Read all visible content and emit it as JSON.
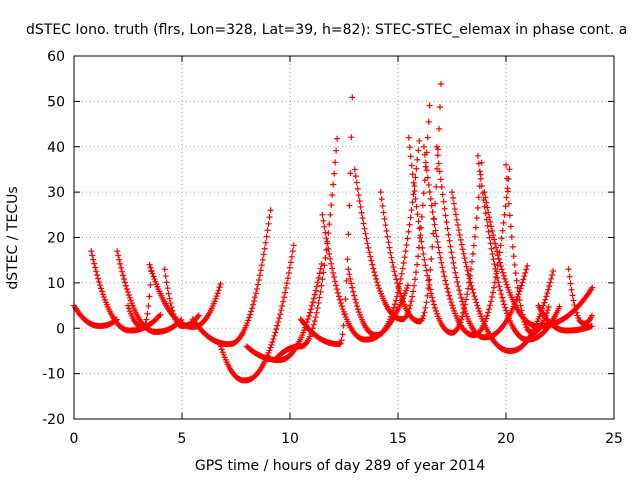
{
  "chart_data": {
    "type": "scatter",
    "title": "dSTEC Iono. truth (flrs, Lon=328, Lat=39, h=82): STEC-STEC_elemax in phase cont. a",
    "xlabel": "GPS time / hours of day 289 of year 2014",
    "ylabel": "dSTEC  / TECUs",
    "xlim": [
      0,
      25
    ],
    "ylim": [
      -20,
      60
    ],
    "xticks": [
      0,
      5,
      10,
      15,
      20,
      25
    ],
    "yticks": [
      -20,
      -10,
      0,
      10,
      20,
      30,
      40,
      50,
      60
    ],
    "grid": true,
    "marker": "+",
    "color": "#ff0000",
    "arcs": [
      {
        "start": 0.0,
        "min_t": 1.2,
        "min_v": 0.5,
        "end": 2.0,
        "peak_start": 5,
        "peak_end": 2
      },
      {
        "start": 0.8,
        "min_t": 2.6,
        "min_v": -0.5,
        "end": 4.0,
        "peak_start": 17,
        "peak_end": 3
      },
      {
        "start": 2.0,
        "min_t": 3.8,
        "min_v": -0.8,
        "end": 5.0,
        "peak_start": 17,
        "peak_end": 2
      },
      {
        "start": 2.5,
        "min_t": 3.2,
        "min_v": 0.2,
        "end": 3.6,
        "peak_start": 5,
        "peak_end": 14
      },
      {
        "start": 3.5,
        "min_t": 5.5,
        "min_v": 0.3,
        "end": 6.8,
        "peak_start": 14,
        "peak_end": 10
      },
      {
        "start": 4.2,
        "min_t": 5.0,
        "min_v": 0.5,
        "end": 5.8,
        "peak_start": 13,
        "peak_end": 3
      },
      {
        "start": 5.5,
        "min_t": 7.2,
        "min_v": -3.5,
        "end": 9.1,
        "peak_start": 2,
        "peak_end": 26
      },
      {
        "start": 6.8,
        "min_t": 7.9,
        "min_v": -11.5,
        "end": 10.2,
        "peak_start": -4,
        "peak_end": 19
      },
      {
        "start": 8.0,
        "min_t": 9.5,
        "min_v": -7.0,
        "end": 11.5,
        "peak_start": -4,
        "peak_end": 15
      },
      {
        "start": 9.3,
        "min_t": 10.5,
        "min_v": -4.0,
        "end": 12.2,
        "peak_start": -7,
        "peak_end": 43
      },
      {
        "start": 10.5,
        "min_t": 12.3,
        "min_v": -3.5,
        "end": 12.9,
        "peak_start": 2,
        "peak_end": 54
      },
      {
        "start": 11.5,
        "min_t": 13.5,
        "min_v": -2.5,
        "end": 15.5,
        "peak_start": 25,
        "peak_end": 10
      },
      {
        "start": 12.7,
        "min_t": 14.0,
        "min_v": -1.5,
        "end": 16.0,
        "peak_start": 13,
        "peak_end": 42
      },
      {
        "start": 13.0,
        "min_t": 15.2,
        "min_v": 2.0,
        "end": 16.5,
        "peak_start": 35,
        "peak_end": 52
      },
      {
        "start": 14.2,
        "min_t": 16.0,
        "min_v": 1.5,
        "end": 17.0,
        "peak_start": 30,
        "peak_end": 55
      },
      {
        "start": 15.5,
        "min_t": 17.5,
        "min_v": -1.0,
        "end": 18.9,
        "peak_start": 42,
        "peak_end": 38
      },
      {
        "start": 16.2,
        "min_t": 18.5,
        "min_v": -1.5,
        "end": 20.2,
        "peak_start": 40,
        "peak_end": 37
      },
      {
        "start": 16.8,
        "min_t": 19.0,
        "min_v": -2.0,
        "end": 21.0,
        "peak_start": 40,
        "peak_end": 14
      },
      {
        "start": 17.5,
        "min_t": 20.2,
        "min_v": -5.0,
        "end": 22.2,
        "peak_start": 30,
        "peak_end": 13
      },
      {
        "start": 18.7,
        "min_t": 21.0,
        "min_v": -2.5,
        "end": 22.5,
        "peak_start": 38,
        "peak_end": 5
      },
      {
        "start": 19.0,
        "min_t": 21.5,
        "min_v": 0.5,
        "end": 24.0,
        "peak_start": 30,
        "peak_end": 9
      },
      {
        "start": 20.0,
        "min_t": 21.2,
        "min_v": -1.0,
        "end": 22.0,
        "peak_start": 36,
        "peak_end": 5
      },
      {
        "start": 21.5,
        "min_t": 22.8,
        "min_v": -0.5,
        "end": 24.0,
        "peak_start": 5,
        "peak_end": 0.5
      },
      {
        "start": 22.9,
        "min_t": 23.6,
        "min_v": 1.0,
        "end": 24.0,
        "peak_start": 13,
        "peak_end": 3
      }
    ]
  }
}
